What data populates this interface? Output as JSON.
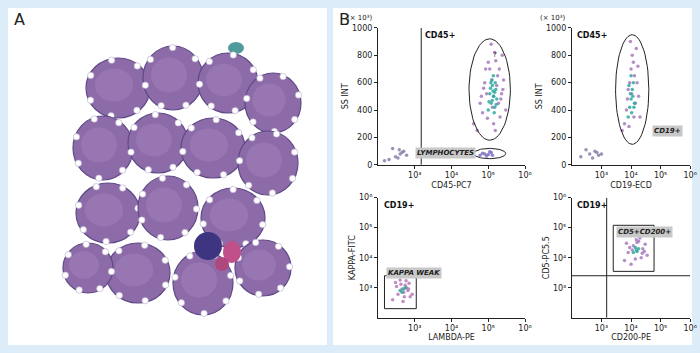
{
  "panel_a": {
    "label": "A"
  },
  "panel_b": {
    "label": "B"
  },
  "chart_data": [
    {
      "type": "scatter",
      "title": "CD45+",
      "x_label": "CD45-PC7",
      "y_label": "SS INT",
      "y_unit_label": "(× 10³)",
      "log": "x",
      "grid": false,
      "xlim": [
        100,
        1000000
      ],
      "ylim": [
        0,
        1000
      ],
      "xticks": [
        {
          "value": 1000,
          "label": "10³"
        },
        {
          "value": 10000,
          "label": "10⁴"
        },
        {
          "value": 100000,
          "label": "10⁵"
        },
        {
          "value": 1000000,
          "label": "10⁶"
        }
      ],
      "yticks": [
        0,
        200,
        400,
        600,
        800,
        1000
      ],
      "series": [
        {
          "color": "#a77bbd",
          "x": [
            40000,
            60000,
            80000,
            100000,
            150000,
            200000,
            250000,
            300000,
            50000,
            70000,
            120000,
            180000,
            220000,
            90000,
            140000,
            260000,
            110000,
            160000,
            75000,
            130000,
            210000,
            170000,
            95000,
            240000,
            65000,
            190000,
            125000,
            155000,
            85000,
            230000
          ],
          "y": [
            300,
            450,
            600,
            750,
            820,
            700,
            550,
            400,
            250,
            380,
            880,
            650,
            480,
            520,
            300,
            620,
            700,
            760,
            560,
            420,
            350,
            580,
            340,
            800,
            500,
            450,
            620,
            250,
            700,
            520
          ]
        },
        {
          "color": "#2fa9a0",
          "x": [
            100000,
            120000,
            140000,
            160000,
            110000,
            130000,
            150000,
            170000,
            125000,
            145000,
            105000,
            135000,
            155000,
            115000,
            165000,
            140000,
            128000,
            150000,
            118000,
            138000
          ],
          "y": [
            400,
            450,
            500,
            550,
            520,
            580,
            420,
            480,
            620,
            380,
            460,
            540,
            600,
            560,
            440,
            500,
            470,
            530,
            600,
            650
          ]
        },
        {
          "color": "#7f6fc0",
          "x": [
            60000,
            80000,
            100000,
            120000,
            90000,
            70000,
            110000,
            130000
          ],
          "y": [
            70,
            80,
            75,
            90,
            65,
            85,
            95,
            70
          ]
        },
        {
          "color": "#8a7fa8",
          "x": [
            200,
            300,
            400,
            500,
            250,
            350,
            450,
            600,
            150,
            380
          ],
          "y": [
            40,
            60,
            80,
            100,
            120,
            50,
            90,
            70,
            30,
            110
          ]
        }
      ],
      "gates": [
        {
          "shape": "ellipse",
          "x": [
            30000,
            400000
          ],
          "y": [
            180,
            920
          ]
        },
        {
          "shape": "ellipse",
          "x": [
            40000,
            300000
          ],
          "y": [
            45,
            120
          ]
        }
      ],
      "gate_lines": [
        {
          "x": 1500
        }
      ],
      "annotations": [
        {
          "text": "?",
          "x": 150000,
          "y": 800,
          "boxed": false
        },
        {
          "text": "LYMPHOCYTES",
          "x": 45000,
          "y": 85,
          "boxed": true,
          "anchor": "right"
        }
      ]
    },
    {
      "type": "scatter",
      "title": "CD45+",
      "x_label": "CD19-ECD",
      "y_label": "SS INT",
      "y_unit_label": "(× 10³)",
      "log": "x",
      "grid": false,
      "xlim": [
        100,
        1000000
      ],
      "ylim": [
        0,
        1000
      ],
      "xticks": [
        {
          "value": 1000,
          "label": "10³"
        },
        {
          "value": 10000,
          "label": "10⁴"
        },
        {
          "value": 100000,
          "label": "10⁵"
        },
        {
          "value": 1000000,
          "label": "10⁶"
        }
      ],
      "yticks": [
        0,
        200,
        400,
        600,
        800,
        1000
      ],
      "series": [
        {
          "color": "#a77bbd",
          "x": [
            5000,
            7000,
            9000,
            12000,
            15000,
            18000,
            6000,
            8000,
            10000,
            14000,
            20000,
            11000,
            13000,
            7500,
            16000,
            9500,
            12500,
            8500,
            17000,
            10500
          ],
          "y": [
            250,
            400,
            600,
            750,
            850,
            500,
            300,
            550,
            700,
            450,
            350,
            800,
            650,
            480,
            600,
            900,
            350,
            280,
            720,
            520
          ]
        },
        {
          "color": "#2fa9a0",
          "x": [
            8000,
            9000,
            10000,
            11000,
            12000,
            13000,
            9500,
            10500,
            11500,
            8500,
            12500,
            10000
          ],
          "y": [
            350,
            420,
            480,
            550,
            600,
            450,
            520,
            380,
            500,
            580,
            420,
            650
          ]
        },
        {
          "color": "#8a7fa8",
          "x": [
            200,
            400,
            600,
            800,
            300,
            500,
            700,
            1000
          ],
          "y": [
            60,
            80,
            100,
            70,
            110,
            50,
            90,
            80
          ]
        }
      ],
      "gates": [
        {
          "shape": "ellipse",
          "x": [
            3000,
            40000
          ],
          "y": [
            150,
            950
          ]
        }
      ],
      "gate_lines": [],
      "annotations": [
        {
          "text": "CD19+",
          "x": 50000,
          "y": 250,
          "boxed": true,
          "anchor": "left"
        }
      ]
    },
    {
      "type": "scatter",
      "title": "CD19+",
      "x_label": "LAMBDA-PE",
      "y_label": "KAPPA-FITC",
      "log": true,
      "grid": false,
      "xlim": [
        100,
        1000000
      ],
      "ylim": [
        100,
        1000000
      ],
      "xticks": [
        {
          "value": 1000,
          "label": "10³"
        },
        {
          "value": 10000,
          "label": "10⁴"
        },
        {
          "value": 100000,
          "label": "10⁵"
        },
        {
          "value": 1000000,
          "label": "10⁶"
        }
      ],
      "yticks": [
        {
          "value": 1000,
          "label": "10³"
        },
        {
          "value": 10000,
          "label": "10⁴"
        },
        {
          "value": 100000,
          "label": "10⁵"
        },
        {
          "value": 1000000,
          "label": "10⁶"
        }
      ],
      "series": [
        {
          "color": "#b57ab8",
          "x": [
            250,
            350,
            450,
            550,
            650,
            750,
            300,
            400,
            500,
            600,
            700,
            850,
            320,
            480,
            580,
            680,
            420,
            520
          ],
          "y": [
            400,
            600,
            900,
            1200,
            800,
            500,
            1500,
            1800,
            700,
            1000,
            1400,
            600,
            1100,
            350,
            1700,
            900,
            1300,
            500
          ]
        },
        {
          "color": "#2fa9a0",
          "x": [
            400,
            500,
            450,
            550
          ],
          "y": [
            800,
            900,
            700,
            1000
          ]
        }
      ],
      "gates": [
        {
          "shape": "box",
          "x": [
            150,
            1100
          ],
          "y": [
            200,
            2500
          ]
        }
      ],
      "gate_lines": [],
      "annotations": [
        {
          "text": "KAPPA WEAK",
          "x": 160,
          "y": 3000,
          "boxed": true,
          "anchor": "left"
        }
      ]
    },
    {
      "type": "scatter",
      "title": "CD19+",
      "x_label": "CD200-PE",
      "y_label": "CD5-PC5.5",
      "log": true,
      "grid": false,
      "xlim": [
        100,
        1000000
      ],
      "ylim": [
        100,
        1000000
      ],
      "xticks": [
        {
          "value": 1000,
          "label": "10³"
        },
        {
          "value": 10000,
          "label": "10⁴"
        },
        {
          "value": 100000,
          "label": "10⁵"
        },
        {
          "value": 1000000,
          "label": "10⁶"
        }
      ],
      "yticks": [
        {
          "value": 1000,
          "label": "10³"
        },
        {
          "value": 10000,
          "label": "10⁴"
        },
        {
          "value": 100000,
          "label": "10⁵"
        },
        {
          "value": 1000000,
          "label": "10⁶"
        }
      ],
      "series": [
        {
          "color": "#a77bbd",
          "x": [
            6000,
            8000,
            12000,
            18000,
            25000,
            35000,
            7000,
            10000,
            15000,
            22000,
            30000,
            9000,
            14000,
            20000,
            28000,
            11000,
            16000,
            24000
          ],
          "y": [
            8000,
            15000,
            25000,
            35000,
            20000,
            12000,
            30000,
            6000,
            40000,
            10000,
            28000,
            22000,
            9000,
            45000,
            16000,
            18000,
            32000,
            14000
          ]
        },
        {
          "color": "#2fa9a0",
          "x": [
            12000,
            15000,
            18000,
            14000,
            16000
          ],
          "y": [
            15000,
            18000,
            20000,
            22000,
            16000
          ]
        }
      ],
      "gates": [
        {
          "shape": "box",
          "x": [
            2500,
            60000
          ],
          "y": [
            3500,
            120000
          ]
        }
      ],
      "gate_lines": [
        {
          "x": 1500
        },
        {
          "y": 2500
        }
      ],
      "annotations": [
        {
          "text": "CD5+CD200+",
          "x": 3000,
          "y": 70000,
          "boxed": true,
          "anchor": "left"
        }
      ]
    }
  ]
}
